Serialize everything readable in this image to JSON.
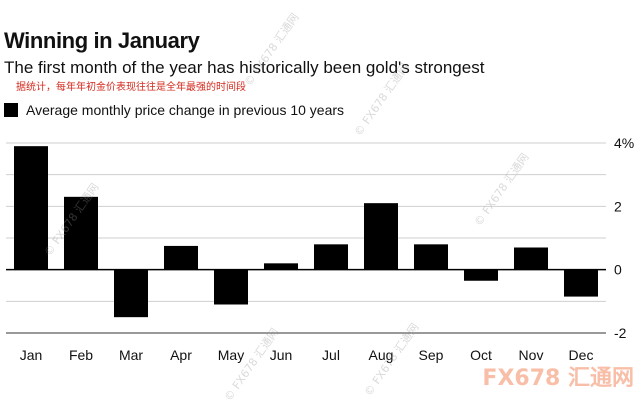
{
  "header": {
    "title": "Winning in January",
    "subtitle": "The first month of the year has historically been gold's strongest",
    "note": "据统计，每年年初金价表现往往是全年最强的时间段"
  },
  "watermark": {
    "text": "© FX678 汇通网",
    "big_text": "FX678 汇通网"
  },
  "colors": {
    "bar": "#000000",
    "note": "#d42a1e",
    "grid": "#cfcfcf",
    "zero_line": "#000000"
  },
  "chart_data": {
    "type": "bar",
    "categories": [
      "Jan",
      "Feb",
      "Mar",
      "Apr",
      "May",
      "Jun",
      "Jul",
      "Aug",
      "Sep",
      "Oct",
      "Nov",
      "Dec"
    ],
    "series": [
      {
        "name": "Average monthly price change in previous 10 years",
        "values": [
          3.9,
          2.3,
          -1.5,
          0.75,
          -1.1,
          0.2,
          0.8,
          2.1,
          0.8,
          -0.35,
          0.7,
          -0.85
        ]
      }
    ],
    "y_ticks": [
      4,
      2,
      0,
      -2
    ],
    "y_tick_labels": [
      "4%",
      "2",
      "0",
      "-2"
    ],
    "ylim": [
      -2,
      4
    ],
    "grid": true,
    "legend": "top-left",
    "title": "Winning in January",
    "subtitle": "The first month of the year has historically been gold's strongest",
    "xlabel": "",
    "ylabel": ""
  }
}
